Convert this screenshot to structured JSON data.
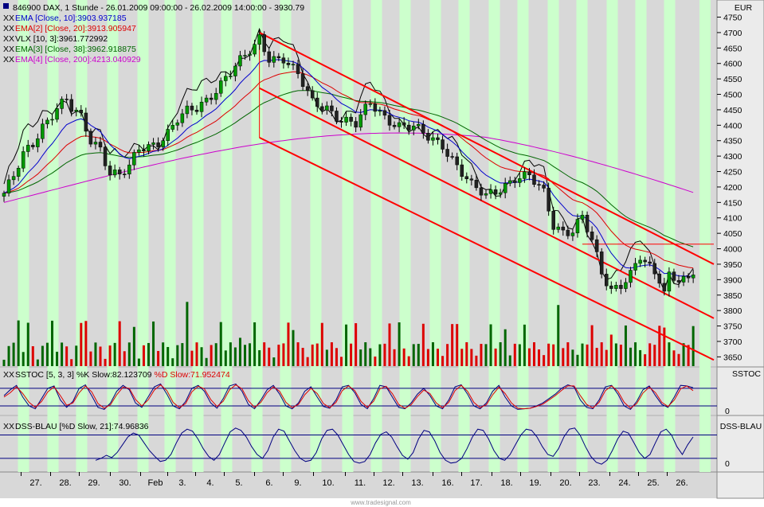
{
  "chart_data": [
    {
      "type": "candlestick",
      "title": "846900 DAX, 1 Stunde - 26.01.2009 09:00:00 - 26.02.2009 14:00:00 - 3930.79",
      "currency": "EUR",
      "x_tick_labels": [
        "27.",
        "28.",
        "29.",
        "30.",
        "Feb",
        "3.",
        "4.",
        "5.",
        "6.",
        "9.",
        "10.",
        "11.",
        "12.",
        "13.",
        "16.",
        "17.",
        "18.",
        "19.",
        "20.",
        "23.",
        "24.",
        "25.",
        "26."
      ],
      "ylim": [
        3620,
        4790
      ],
      "y_ticks": [
        3650,
        3700,
        3750,
        3800,
        3850,
        3900,
        3950,
        4000,
        4050,
        4100,
        4150,
        4200,
        4250,
        4300,
        4350,
        4400,
        4450,
        4500,
        4550,
        4600,
        4650,
        4700,
        4750
      ],
      "legend": [
        {
          "prefix": "XX",
          "label": "EMA [Close, 10]:3903.937185",
          "color": "#0000cc"
        },
        {
          "prefix": "XX",
          "label": "EMA[2] [Close, 20]:3913.905947",
          "color": "#dd0000"
        },
        {
          "prefix": "XX",
          "label": "VLX [10, 3]:3961.772992",
          "color": "#000000"
        },
        {
          "prefix": "XX",
          "label": "EMA[3] [Close, 38]:3962.918875",
          "color": "#006600"
        },
        {
          "prefix": "XX",
          "label": "EMA[4] [Close, 200]:4213.040929",
          "color": "#cc00cc"
        }
      ],
      "series_keys": [
        "ema10",
        "ema20",
        "vlx",
        "ema38",
        "ema200"
      ],
      "price_anchors": [
        [
          0,
          4180
        ],
        [
          2,
          4230
        ],
        [
          4,
          4300
        ],
        [
          6,
          4340
        ],
        [
          8,
          4400
        ],
        [
          10,
          4440
        ],
        [
          11,
          4460
        ],
        [
          13,
          4480
        ],
        [
          14,
          4450
        ],
        [
          16,
          4420
        ],
        [
          18,
          4350
        ],
        [
          20,
          4330
        ],
        [
          22,
          4250
        ],
        [
          24,
          4240
        ],
        [
          26,
          4260
        ],
        [
          28,
          4320
        ],
        [
          30,
          4330
        ],
        [
          32,
          4350
        ],
        [
          34,
          4380
        ],
        [
          36,
          4420
        ],
        [
          38,
          4440
        ],
        [
          40,
          4450
        ],
        [
          42,
          4480
        ],
        [
          44,
          4520
        ],
        [
          46,
          4560
        ],
        [
          48,
          4590
        ],
        [
          50,
          4620
        ],
        [
          52,
          4650
        ],
        [
          53,
          4680
        ],
        [
          55,
          4620
        ],
        [
          58,
          4620
        ],
        [
          61,
          4560
        ],
        [
          64,
          4470
        ],
        [
          67,
          4460
        ],
        [
          70,
          4420
        ],
        [
          73,
          4400
        ],
        [
          76,
          4470
        ],
        [
          79,
          4430
        ],
        [
          82,
          4400
        ],
        [
          85,
          4390
        ],
        [
          88,
          4360
        ],
        [
          91,
          4340
        ],
        [
          94,
          4270
        ],
        [
          97,
          4200
        ],
        [
          100,
          4170
        ],
        [
          103,
          4200
        ],
        [
          106,
          4230
        ],
        [
          109,
          4230
        ],
        [
          112,
          4180
        ],
        [
          114,
          4080
        ],
        [
          116,
          4060
        ],
        [
          118,
          4060
        ],
        [
          120,
          4100
        ],
        [
          122,
          4020
        ],
        [
          124,
          3920
        ],
        [
          126,
          3870
        ],
        [
          128,
          3890
        ],
        [
          130,
          3920
        ],
        [
          132,
          3970
        ],
        [
          134,
          3930
        ],
        [
          136,
          3900
        ],
        [
          137,
          3860
        ],
        [
          138,
          3920
        ],
        [
          140,
          3910
        ],
        [
          142,
          3900
        ],
        [
          143,
          3925
        ]
      ],
      "channel_lines": [
        {
          "name": "upper",
          "from": [
            53,
            4700
          ],
          "to": [
            147,
            3950
          ]
        },
        {
          "name": "middle",
          "from": [
            53,
            4520
          ],
          "to": [
            147,
            3775
          ]
        },
        {
          "name": "lower",
          "from": [
            53,
            4360
          ],
          "to": [
            147,
            3640
          ]
        }
      ],
      "resistance_line": {
        "value": 4015,
        "from_index": 120,
        "to_index": 147
      },
      "drop_marker": {
        "index": 53,
        "from": 4700,
        "to": 4360
      }
    },
    {
      "type": "line",
      "title": "SSTOC [5, 3, 3] %K Slow:82.123709 %D Slow:71.952474",
      "label_prefix": "XX",
      "label_name": "SSTOC [5, 3, 3]",
      "k_label": "%K Slow:82.123709",
      "d_label": "%D Slow:71.952474",
      "axis_label": "SSTOC",
      "ylim": [
        -10,
        115
      ],
      "y_ticks": [
        0
      ],
      "reference_lines": [
        20,
        80
      ],
      "series": [
        {
          "name": "%K Slow",
          "color": "#000080",
          "values": [
            55,
            75,
            90,
            50,
            20,
            10,
            45,
            80,
            88,
            40,
            15,
            35,
            80,
            92,
            55,
            15,
            8,
            30,
            70,
            90,
            75,
            30,
            15,
            50,
            85,
            95,
            60,
            20,
            10,
            35,
            80,
            90,
            70,
            30,
            12,
            45,
            88,
            95,
            70,
            25,
            10,
            40,
            75,
            90,
            60,
            20,
            10,
            30,
            70,
            85,
            50,
            18,
            12,
            40,
            85,
            90,
            65,
            25,
            10,
            45,
            90,
            85,
            50,
            15,
            10,
            30,
            60,
            80,
            55,
            20,
            10,
            40,
            85,
            92,
            60,
            20,
            10,
            30,
            70,
            90,
            50,
            20,
            8,
            10,
            12,
            20,
            30,
            45,
            60,
            80,
            92,
            85,
            40,
            15,
            10,
            40,
            85,
            90,
            60,
            20,
            8,
            35,
            75,
            88,
            55,
            25,
            15,
            50,
            90,
            88,
            82
          ]
        },
        {
          "name": "%D Slow",
          "color": "#dd0000",
          "values": [
            50,
            65,
            85,
            62,
            32,
            15,
            35,
            68,
            85,
            55,
            22,
            30,
            65,
            88,
            68,
            28,
            12,
            24,
            58,
            84,
            80,
            42,
            20,
            40,
            74,
            92,
            72,
            32,
            14,
            28,
            68,
            87,
            78,
            42,
            18,
            36,
            75,
            92,
            78,
            38,
            15,
            32,
            65,
            85,
            70,
            32,
            14,
            25,
            58,
            80,
            62,
            28,
            14,
            32,
            72,
            88,
            72,
            35,
            15,
            36,
            78,
            87,
            62,
            25,
            12,
            24,
            52,
            74,
            62,
            30,
            14,
            32,
            72,
            90,
            70,
            32,
            14,
            24,
            58,
            84,
            62,
            30,
            12,
            10,
            12,
            18,
            26,
            40,
            55,
            73,
            88,
            88,
            55,
            25,
            13,
            32,
            72,
            88,
            70,
            32,
            12,
            28,
            64,
            84,
            65,
            32,
            18,
            40,
            78,
            88,
            72
          ]
        }
      ]
    },
    {
      "type": "line",
      "title": "DSS-BLAU [%D Slow, 21]:74.96836",
      "label_prefix": "XX",
      "label_name": "DSS-BLAU [%D Slow, 21]:74.96836",
      "axis_label": "DSS-BLAU",
      "ylim": [
        -15,
        120
      ],
      "y_ticks": [
        0
      ],
      "reference_lines": [
        20,
        80
      ],
      "series": [
        {
          "name": "DSS-BLAU",
          "color": "#000080",
          "values": [
            15,
            20,
            28,
            22,
            35,
            55,
            75,
            85,
            80,
            60,
            40,
            25,
            12,
            15,
            30,
            60,
            85,
            95,
            90,
            70,
            45,
            25,
            15,
            30,
            60,
            88,
            98,
            92,
            75,
            50,
            30,
            20,
            40,
            75,
            95,
            90,
            65,
            40,
            20,
            12,
            15,
            35,
            70,
            92,
            95,
            80,
            55,
            30,
            12,
            8,
            12,
            30,
            60,
            82,
            88,
            75,
            50,
            28,
            18,
            35,
            70,
            92,
            88,
            65,
            35,
            15,
            8,
            10,
            20,
            45,
            75,
            95,
            92,
            70,
            40,
            20,
            15,
            30,
            55,
            80,
            95,
            92,
            75,
            50,
            30,
            25,
            45,
            75,
            95,
            98,
            80,
            50,
            25,
            10,
            5,
            15,
            40,
            70,
            90,
            85,
            60,
            35,
            20,
            30,
            60,
            88,
            95,
            80,
            50,
            30,
            55,
            75
          ]
        }
      ]
    }
  ],
  "footer": {
    "watermark": "www.tradesignal.com"
  }
}
